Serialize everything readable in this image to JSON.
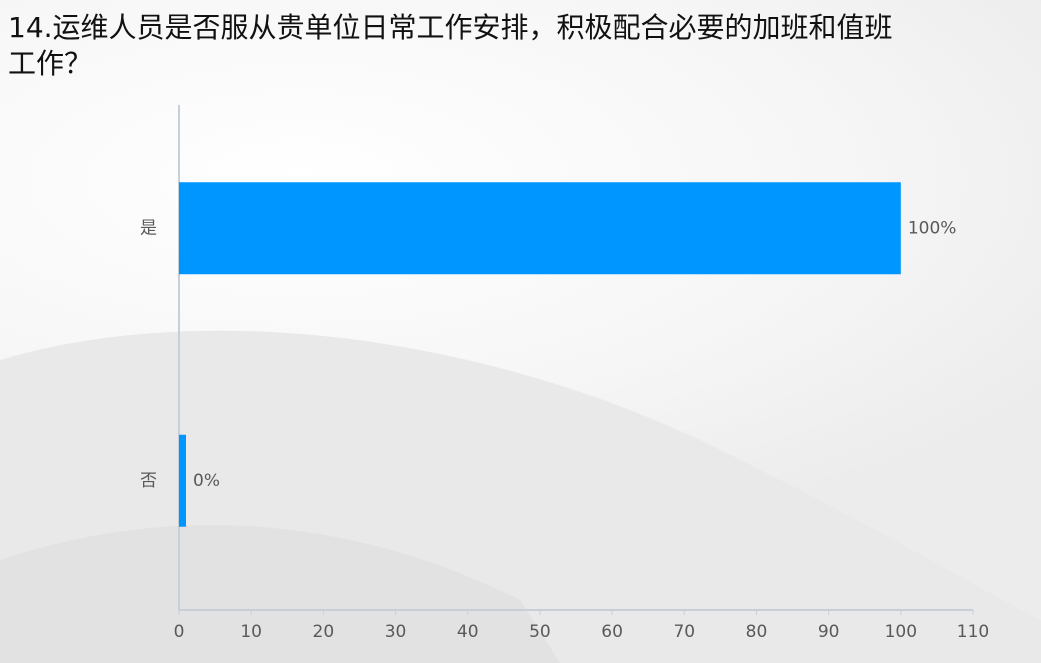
{
  "chart_data": {
    "type": "hbar",
    "title": "14.运维人员是否服从贵单位日常工作安排，积极配合必要的加班和值班工作？",
    "categories": [
      "是",
      "否"
    ],
    "values": [
      100,
      0
    ],
    "value_labels": [
      "100%",
      "0%"
    ],
    "color": "#0096ff",
    "xlim": [
      0,
      110
    ],
    "xticks": [
      0,
      10,
      20,
      30,
      40,
      50,
      60,
      70,
      80,
      90,
      100,
      110
    ]
  }
}
